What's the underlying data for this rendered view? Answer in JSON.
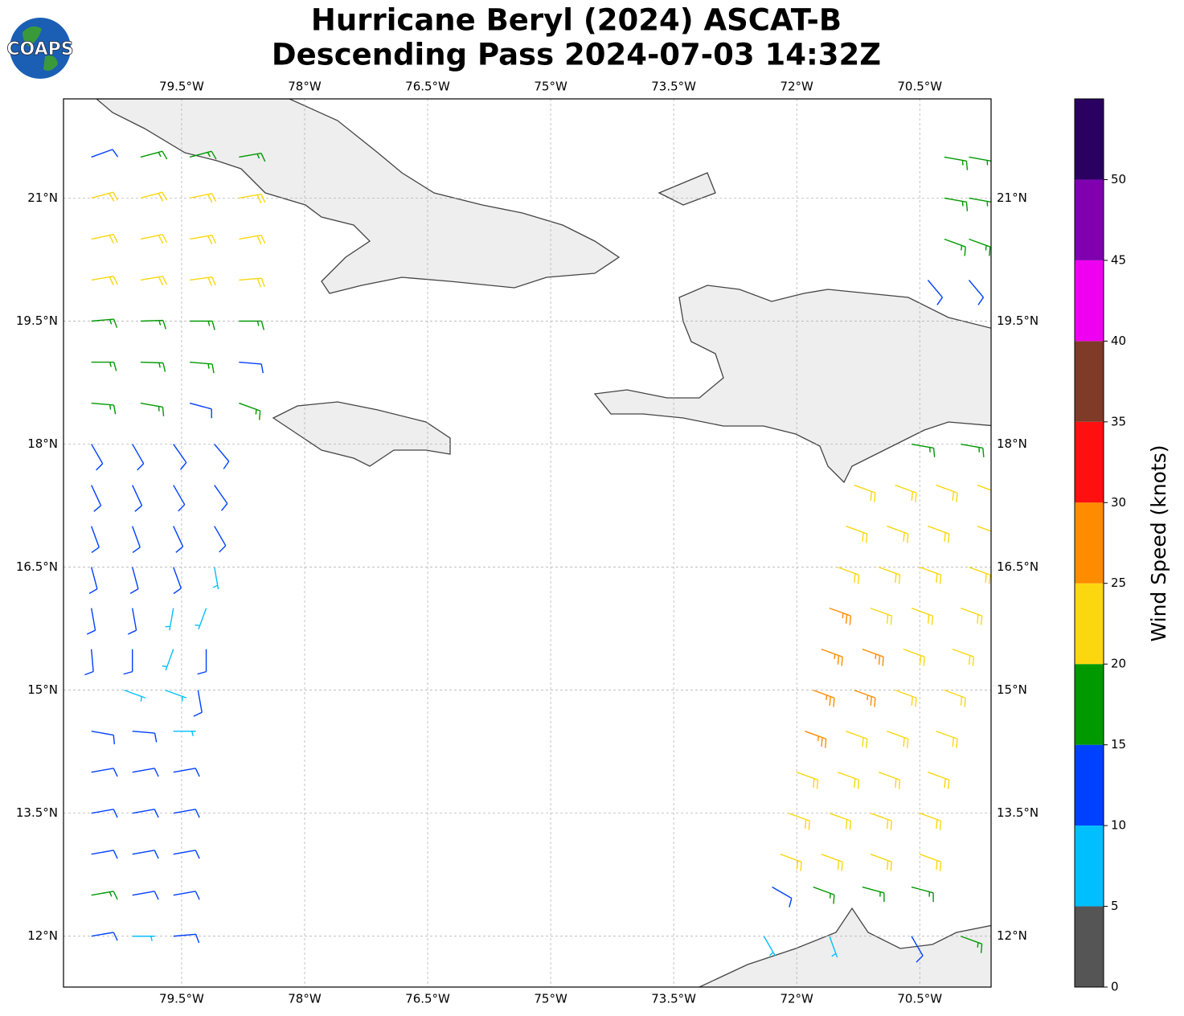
{
  "map": {
    "title": "Hurricane Beryl (2024) ASCAT-B",
    "subtitle": "Descending Pass 2024-07-03 14:32Z",
    "logo": "COAPS",
    "xlim": [
      -80.94,
      -69.63
    ],
    "ylim": [
      11.38,
      22.21
    ],
    "xticks": [
      {
        "value": -79.5,
        "label": "79.5°W"
      },
      {
        "value": -78,
        "label": "78°W"
      },
      {
        "value": -76.5,
        "label": "76.5°W"
      },
      {
        "value": -75,
        "label": "75°W"
      },
      {
        "value": -73.5,
        "label": "73.5°W"
      },
      {
        "value": -72,
        "label": "72°W"
      },
      {
        "value": -70.5,
        "label": "70.5°W"
      }
    ],
    "yticks": [
      {
        "value": 12,
        "label": "12°N"
      },
      {
        "value": 13.5,
        "label": "13.5°N"
      },
      {
        "value": 15,
        "label": "15°N"
      },
      {
        "value": 16.5,
        "label": "16.5°N"
      },
      {
        "value": 18,
        "label": "18°N"
      },
      {
        "value": 19.5,
        "label": "19.5°N"
      },
      {
        "value": 21,
        "label": "21°N"
      }
    ],
    "grid": true,
    "colorbar": {
      "label": "Wind Speed (knots)",
      "lim": [
        0,
        55
      ],
      "ticks": [
        0,
        5,
        10,
        15,
        20,
        25,
        30,
        35,
        40,
        45,
        50
      ],
      "colors": [
        "#555555",
        "#00bfff",
        "#0040ff",
        "#009900",
        "#fbd70f",
        "#ff8c00",
        "#ff1010",
        "#7f3a28",
        "#f000f0",
        "#8000b0",
        "#2a0060"
      ]
    },
    "barbs": [
      [
        -80.6,
        21.5,
        13,
        70
      ],
      [
        -80.0,
        21.5,
        17,
        75
      ],
      [
        -79.4,
        21.5,
        18,
        75
      ],
      [
        -78.8,
        21.5,
        17,
        80
      ],
      [
        -80.6,
        21.0,
        22,
        75
      ],
      [
        -80.0,
        21.0,
        23,
        75
      ],
      [
        -79.4,
        21.0,
        22,
        78
      ],
      [
        -78.8,
        21.0,
        22,
        80
      ],
      [
        -80.6,
        20.5,
        22,
        78
      ],
      [
        -80.0,
        20.5,
        23,
        78
      ],
      [
        -79.4,
        20.5,
        22,
        80
      ],
      [
        -78.8,
        20.5,
        21,
        80
      ],
      [
        -80.6,
        20.0,
        22,
        80
      ],
      [
        -80.0,
        20.0,
        22,
        80
      ],
      [
        -79.4,
        20.0,
        21,
        82
      ],
      [
        -78.8,
        20.0,
        21,
        85
      ],
      [
        -80.6,
        19.5,
        18,
        85
      ],
      [
        -80.0,
        19.5,
        18,
        88
      ],
      [
        -79.4,
        19.5,
        17,
        90
      ],
      [
        -78.8,
        19.5,
        17,
        90
      ],
      [
        -80.6,
        19.0,
        17,
        90
      ],
      [
        -80.0,
        19.0,
        17,
        92
      ],
      [
        -79.4,
        19.0,
        16,
        95
      ],
      [
        -78.8,
        19.0,
        14,
        95
      ],
      [
        -80.6,
        18.5,
        16,
        95
      ],
      [
        -80.0,
        18.5,
        16,
        100
      ],
      [
        -79.4,
        18.5,
        14,
        105
      ],
      [
        -78.8,
        18.5,
        16,
        110
      ],
      [
        -80.6,
        18.0,
        13,
        150
      ],
      [
        -80.1,
        18.0,
        13,
        150
      ],
      [
        -79.6,
        18.0,
        13,
        145
      ],
      [
        -79.1,
        18.0,
        14,
        140
      ],
      [
        -80.6,
        17.5,
        13,
        155
      ],
      [
        -80.1,
        17.5,
        13,
        155
      ],
      [
        -79.6,
        17.5,
        12,
        150
      ],
      [
        -79.1,
        17.5,
        13,
        145
      ],
      [
        -80.6,
        17.0,
        12,
        160
      ],
      [
        -80.1,
        17.0,
        12,
        160
      ],
      [
        -79.6,
        17.0,
        12,
        155
      ],
      [
        -79.1,
        17.0,
        11,
        150
      ],
      [
        -80.6,
        16.5,
        12,
        165
      ],
      [
        -80.1,
        16.5,
        12,
        165
      ],
      [
        -79.6,
        16.5,
        11,
        160
      ],
      [
        -79.1,
        16.5,
        8,
        170
      ],
      [
        -80.6,
        16.0,
        11,
        170
      ],
      [
        -80.1,
        16.0,
        11,
        170
      ],
      [
        -79.6,
        16.0,
        8,
        190
      ],
      [
        -79.2,
        16.0,
        7,
        200
      ],
      [
        -80.6,
        15.5,
        11,
        175
      ],
      [
        -80.1,
        15.5,
        10,
        180
      ],
      [
        -79.6,
        15.5,
        8,
        200
      ],
      [
        -79.2,
        15.5,
        11,
        180
      ],
      [
        -80.2,
        15.0,
        8,
        110
      ],
      [
        -79.7,
        15.0,
        7,
        110
      ],
      [
        -79.3,
        15.0,
        11,
        170
      ],
      [
        -80.6,
        14.5,
        12,
        100
      ],
      [
        -80.1,
        14.5,
        12,
        95
      ],
      [
        -79.6,
        14.5,
        9,
        90
      ],
      [
        -80.6,
        14.0,
        13,
        80
      ],
      [
        -80.1,
        14.0,
        13,
        80
      ],
      [
        -79.6,
        14.0,
        12,
        80
      ],
      [
        -80.6,
        13.5,
        13,
        80
      ],
      [
        -80.1,
        13.5,
        13,
        80
      ],
      [
        -79.6,
        13.5,
        12,
        80
      ],
      [
        -80.6,
        13.0,
        14,
        80
      ],
      [
        -80.1,
        13.0,
        13,
        80
      ],
      [
        -79.6,
        13.0,
        13,
        80
      ],
      [
        -80.6,
        12.5,
        16,
        80
      ],
      [
        -80.1,
        12.5,
        14,
        80
      ],
      [
        -79.6,
        12.5,
        12,
        80
      ],
      [
        -80.6,
        12.0,
        11,
        80
      ],
      [
        -80.1,
        12.0,
        9,
        90
      ],
      [
        -79.6,
        12.0,
        11,
        85
      ],
      [
        -70.2,
        21.5,
        17,
        100
      ],
      [
        -69.9,
        21.5,
        16,
        100
      ],
      [
        -70.2,
        21.0,
        17,
        100
      ],
      [
        -69.9,
        21.0,
        17,
        100
      ],
      [
        -70.2,
        20.5,
        16,
        110
      ],
      [
        -69.9,
        20.5,
        17,
        110
      ],
      [
        -70.4,
        20.0,
        12,
        140
      ],
      [
        -69.9,
        20.0,
        13,
        140
      ],
      [
        -70.6,
        18.0,
        16,
        100
      ],
      [
        -70.0,
        18.0,
        18,
        100
      ],
      [
        -71.3,
        17.5,
        22,
        110
      ],
      [
        -70.8,
        17.5,
        22,
        110
      ],
      [
        -70.3,
        17.5,
        21,
        110
      ],
      [
        -69.8,
        17.5,
        22,
        110
      ],
      [
        -71.4,
        17.0,
        22,
        110
      ],
      [
        -70.9,
        17.0,
        23,
        110
      ],
      [
        -70.4,
        17.0,
        22,
        110
      ],
      [
        -69.8,
        17.0,
        22,
        110
      ],
      [
        -71.5,
        16.5,
        24,
        110
      ],
      [
        -71.0,
        16.5,
        23,
        110
      ],
      [
        -70.5,
        16.5,
        22,
        110
      ],
      [
        -69.9,
        16.5,
        22,
        110
      ],
      [
        -71.6,
        16.0,
        26,
        110
      ],
      [
        -71.1,
        16.0,
        24,
        110
      ],
      [
        -70.6,
        16.0,
        23,
        110
      ],
      [
        -70.0,
        16.0,
        22,
        110
      ],
      [
        -71.7,
        15.5,
        27,
        110
      ],
      [
        -71.2,
        15.5,
        26,
        110
      ],
      [
        -70.7,
        15.5,
        24,
        110
      ],
      [
        -70.1,
        15.5,
        22,
        110
      ],
      [
        -71.8,
        15.0,
        27,
        110
      ],
      [
        -71.3,
        15.0,
        26,
        110
      ],
      [
        -70.8,
        15.0,
        24,
        110
      ],
      [
        -70.2,
        15.0,
        23,
        110
      ],
      [
        -71.9,
        14.5,
        26,
        110
      ],
      [
        -71.4,
        14.5,
        24,
        110
      ],
      [
        -70.9,
        14.5,
        24,
        110
      ],
      [
        -70.3,
        14.5,
        22,
        110
      ],
      [
        -72.0,
        14.0,
        23,
        110
      ],
      [
        -71.5,
        14.0,
        22,
        110
      ],
      [
        -71.0,
        14.0,
        24,
        110
      ],
      [
        -70.4,
        14.0,
        22,
        110
      ],
      [
        -72.1,
        13.5,
        22,
        110
      ],
      [
        -71.6,
        13.5,
        22,
        110
      ],
      [
        -71.1,
        13.5,
        21,
        110
      ],
      [
        -70.5,
        13.5,
        22,
        110
      ],
      [
        -72.2,
        13.0,
        21,
        110
      ],
      [
        -71.7,
        13.0,
        21,
        110
      ],
      [
        -71.1,
        13.0,
        20,
        110
      ],
      [
        -70.5,
        13.0,
        21,
        110
      ],
      [
        -72.3,
        12.6,
        12,
        120
      ],
      [
        -71.8,
        12.6,
        17,
        110
      ],
      [
        -71.2,
        12.6,
        18,
        105
      ],
      [
        -70.6,
        12.6,
        17,
        105
      ],
      [
        -72.4,
        12.0,
        8,
        150
      ],
      [
        -71.6,
        12.0,
        6,
        160
      ],
      [
        -70.6,
        12.0,
        12,
        150
      ],
      [
        -70.0,
        12.0,
        17,
        110
      ]
    ]
  }
}
